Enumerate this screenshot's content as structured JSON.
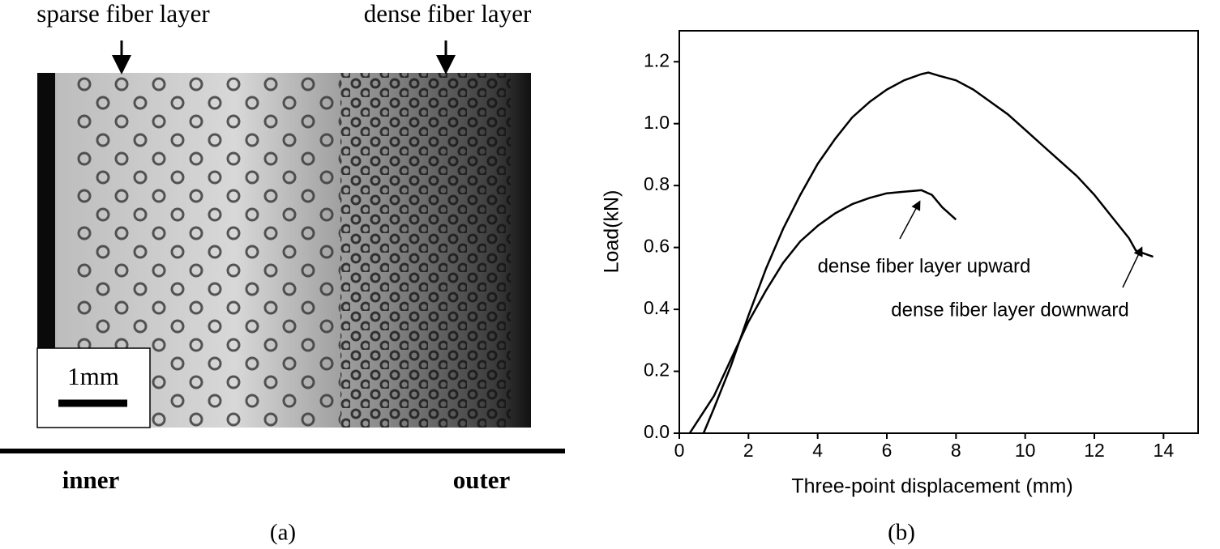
{
  "panel_a": {
    "top_labels": [
      "sparse fiber layer",
      "dense fiber layer"
    ],
    "scale_label": "1mm",
    "bottom_labels": [
      "inner",
      "outer"
    ],
    "caption": "(a)"
  },
  "chart_data": {
    "type": "line",
    "caption": "(b)",
    "x_label": "Three-point displacement (mm)",
    "y_label": "Load(kN)",
    "xlim": [
      0,
      15
    ],
    "ylim": [
      0,
      1.3
    ],
    "xticks": [
      0,
      2,
      4,
      6,
      8,
      10,
      12,
      14
    ],
    "yticks": [
      {
        "value": 0,
        "label": "0.0"
      },
      0.2,
      0.4,
      0.6,
      0.8,
      {
        "value": 1,
        "label": "1.0"
      },
      1.2
    ],
    "series": [
      {
        "name": "dense fiber layer upward",
        "color": "#000000",
        "x": [
          0.3,
          1,
          1.5,
          2,
          2.5,
          3,
          3.5,
          4,
          4.5,
          5,
          5.5,
          6,
          6.5,
          7,
          7.3,
          7.6,
          8
        ],
        "values": [
          0,
          0.12,
          0.24,
          0.36,
          0.46,
          0.55,
          0.62,
          0.67,
          0.71,
          0.74,
          0.76,
          0.775,
          0.78,
          0.785,
          0.77,
          0.73,
          0.69
        ]
      },
      {
        "name": "dense fiber layer downward",
        "color": "#000000",
        "x": [
          0.7,
          1,
          1.5,
          2,
          2.5,
          3,
          3.5,
          4,
          4.5,
          5,
          5.5,
          6,
          6.5,
          7,
          7.2,
          7.5,
          8,
          8.5,
          9,
          9.5,
          10,
          10.5,
          11,
          11.5,
          12,
          12.5,
          13,
          13.2,
          13.7
        ],
        "values": [
          0,
          0.08,
          0.22,
          0.38,
          0.53,
          0.66,
          0.77,
          0.87,
          0.95,
          1.02,
          1.07,
          1.11,
          1.14,
          1.16,
          1.165,
          1.155,
          1.14,
          1.11,
          1.07,
          1.03,
          0.98,
          0.93,
          0.88,
          0.83,
          0.77,
          0.7,
          0.63,
          0.59,
          0.57
        ]
      }
    ]
  }
}
